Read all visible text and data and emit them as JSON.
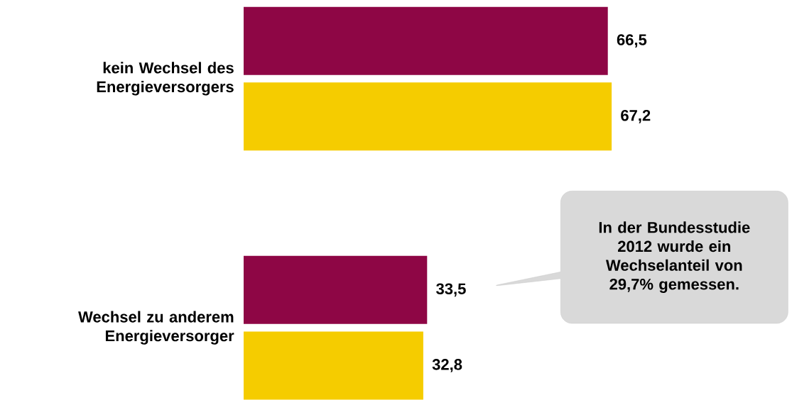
{
  "chart_data": {
    "type": "bar",
    "orientation": "horizontal",
    "categories": [
      "kein Wechsel des Energieversorgers",
      "Wechsel zu anderem Energieversorger"
    ],
    "series": [
      {
        "color": "#8e0645",
        "values": [
          66.5,
          33.5
        ],
        "value_labels": [
          "66,5",
          "33,5"
        ]
      },
      {
        "color": "#f5cc00",
        "values": [
          67.2,
          32.8
        ],
        "value_labels": [
          "67,2",
          "32,8"
        ]
      }
    ],
    "tick_labels": "y",
    "annotations": [
      "In der Bundesstudie 2012 wurde ein Wechselanteil von 29,7% gemessen."
    ]
  }
}
